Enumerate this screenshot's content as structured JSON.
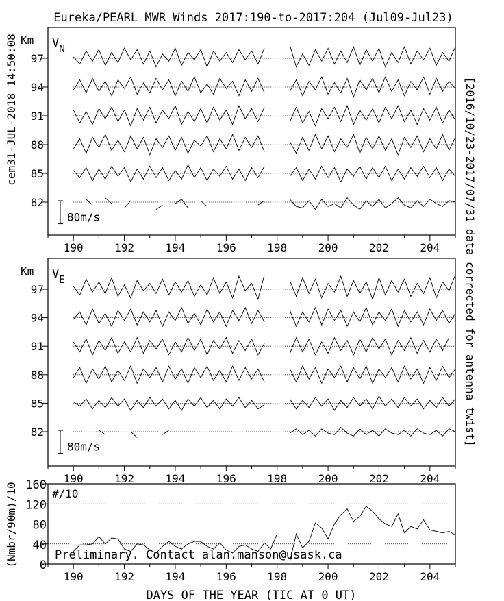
{
  "title": "Eureka/PEARL MWR Winds 2017:190-to-2017:204 (Jul09-Jul23)",
  "left_stamp": "cem31-JUL-2018 14:50:08",
  "right_note": "[2016/10/23-2017/07/31 data corrected for antenna twist]",
  "xlabel": "DAYS OF THE YEAR (TIC AT 0 UT)",
  "footer_note": "Preliminary. Contact alan.manson@usask.ca",
  "colors": {
    "line": "#000000",
    "background": "#ffffff"
  },
  "chart_data": [
    {
      "type": "line",
      "name": "VN",
      "label_main": "V",
      "label_sub": "N",
      "ylabel": "Km",
      "scale_label": "80m/s",
      "scale_value": 80,
      "xlim": [
        189,
        205
      ],
      "xticks": [
        190,
        192,
        194,
        196,
        198,
        200,
        202,
        204
      ],
      "xtick_labels": [
        "190",
        "192",
        "194",
        "196",
        "198",
        "200",
        "202",
        "204"
      ],
      "x_start": 190,
      "x_step": 0.25,
      "altitudes": [
        97,
        94,
        91,
        88,
        85,
        82
      ],
      "altitude_labels": [
        "97",
        "94",
        "91",
        "88",
        "85",
        "82"
      ],
      "series": [
        {
          "name": "97 km",
          "values": [
            5,
            -20,
            25,
            -10,
            30,
            -25,
            20,
            -15,
            35,
            -5,
            30,
            -20,
            25,
            -30,
            15,
            -10,
            35,
            -25,
            20,
            -5,
            30,
            -30,
            25,
            -10,
            20,
            -15,
            30,
            -5,
            25,
            -20,
            35,
            null,
            null,
            null,
            45,
            -30,
            15,
            -25,
            30,
            -10,
            35,
            -20,
            25,
            -15,
            40,
            -25,
            30,
            -10,
            35,
            -30,
            20,
            -15,
            40,
            -20,
            25,
            -5,
            35,
            -25,
            20,
            -10,
            40
          ]
        },
        {
          "name": "94 km",
          "values": [
            -10,
            25,
            -20,
            30,
            -15,
            20,
            -30,
            25,
            -5,
            35,
            -25,
            15,
            -20,
            30,
            -10,
            25,
            -30,
            20,
            -15,
            35,
            -20,
            10,
            -25,
            30,
            -5,
            20,
            -30,
            25,
            -15,
            30,
            -20,
            null,
            null,
            null,
            -15,
            25,
            -30,
            20,
            -10,
            35,
            -25,
            15,
            -20,
            30,
            -35,
            25,
            -10,
            30,
            -20,
            35,
            -15,
            25,
            -30,
            20,
            -10,
            35,
            -25,
            30,
            -15,
            20,
            -5
          ]
        },
        {
          "name": "91 km",
          "values": [
            20,
            -25,
            15,
            -30,
            25,
            -10,
            30,
            -20,
            20,
            -35,
            25,
            -15,
            30,
            -25,
            20,
            -10,
            35,
            -30,
            15,
            -20,
            25,
            -25,
            30,
            -15,
            20,
            -30,
            35,
            -10,
            25,
            -20,
            30,
            null,
            null,
            null,
            -20,
            30,
            -25,
            15,
            -35,
            25,
            -10,
            30,
            -20,
            35,
            -30,
            20,
            -15,
            25,
            -25,
            30,
            -10,
            35,
            -20,
            20,
            -30,
            25,
            -15,
            30,
            -25,
            20,
            -15
          ]
        },
        {
          "name": "88 km",
          "values": [
            -15,
            20,
            -30,
            25,
            -10,
            35,
            -20,
            15,
            -25,
            30,
            -15,
            25,
            -35,
            20,
            -10,
            30,
            -20,
            25,
            -30,
            15,
            -5,
            30,
            -25,
            20,
            -15,
            35,
            -20,
            25,
            -10,
            30,
            -25,
            null,
            null,
            null,
            10,
            -30,
            25,
            -20,
            35,
            -15,
            30,
            -25,
            20,
            -10,
            35,
            -30,
            25,
            -15,
            30,
            -20,
            20,
            -35,
            25,
            -10,
            30,
            -25,
            20,
            -15,
            35,
            -20,
            25
          ]
        },
        {
          "name": "85 km",
          "values": [
            10,
            -15,
            20,
            -25,
            15,
            -20,
            25,
            -10,
            20,
            -30,
            15,
            -20,
            25,
            -15,
            20,
            -25,
            10,
            -20,
            30,
            -15,
            20,
            -25,
            15,
            -10,
            25,
            -20,
            15,
            -25,
            20,
            -15,
            25,
            null,
            null,
            null,
            -10,
            20,
            -25,
            15,
            -20,
            25,
            -15,
            20,
            -30,
            15,
            -10,
            25,
            -20,
            20,
            -15,
            25,
            -25,
            15,
            -20,
            20,
            -10,
            25,
            -15,
            20,
            -25,
            15,
            -10
          ]
        },
        {
          "name": "82 km",
          "values": [
            5,
            null,
            10,
            -10,
            null,
            15,
            -5,
            null,
            -20,
            5,
            null,
            -15,
            null,
            -25,
            -10,
            null,
            -5,
            10,
            -20,
            null,
            5,
            -15,
            null,
            10,
            null,
            -5,
            null,
            5,
            null,
            -10,
            5,
            null,
            null,
            null,
            10,
            -15,
            -20,
            5,
            -25,
            10,
            -15,
            -5,
            -20,
            15,
            -10,
            -25,
            5,
            -15,
            10,
            -20,
            -5,
            15,
            -10,
            -20,
            5,
            -15,
            10,
            -5,
            -15,
            5,
            0
          ]
        }
      ]
    },
    {
      "type": "line",
      "name": "VE",
      "label_main": "V",
      "label_sub": "E",
      "ylabel": "Km",
      "scale_label": "80m/s",
      "scale_value": 80,
      "xlim": [
        189,
        205
      ],
      "xticks": [
        190,
        192,
        194,
        196,
        198,
        200,
        202,
        204
      ],
      "xtick_labels": [
        "190",
        "192",
        "194",
        "196",
        "198",
        "200",
        "202",
        "204"
      ],
      "x_start": 190,
      "x_step": 0.25,
      "altitudes": [
        97,
        94,
        91,
        88,
        85,
        82
      ],
      "altitude_labels": [
        "97",
        "94",
        "91",
        "88",
        "85",
        "82"
      ],
      "series": [
        {
          "name": "97 km",
          "values": [
            10,
            -20,
            35,
            -10,
            25,
            -15,
            40,
            -25,
            15,
            -30,
            30,
            -5,
            20,
            -15,
            35,
            -20,
            25,
            -10,
            30,
            -25,
            15,
            -20,
            40,
            -15,
            25,
            -30,
            45,
            -5,
            20,
            -35,
            50,
            null,
            null,
            null,
            30,
            -25,
            40,
            -15,
            35,
            -30,
            20,
            -10,
            45,
            -25,
            30,
            -15,
            25,
            -35,
            40,
            -20,
            30,
            -10,
            35,
            -25,
            20,
            -15,
            40,
            -30,
            25,
            -5,
            50
          ]
        },
        {
          "name": "94 km",
          "values": [
            -5,
            20,
            -25,
            30,
            -20,
            15,
            -30,
            25,
            -10,
            30,
            -25,
            20,
            -15,
            25,
            -30,
            20,
            -10,
            35,
            -20,
            15,
            -25,
            30,
            -15,
            20,
            -30,
            25,
            -10,
            35,
            -20,
            25,
            -15,
            null,
            null,
            null,
            25,
            -30,
            20,
            -15,
            35,
            -25,
            30,
            -10,
            25,
            -30,
            20,
            -15,
            35,
            -25,
            20,
            -10,
            30,
            -30,
            25,
            -15,
            20,
            -25,
            30,
            -10,
            25,
            -20,
            15
          ]
        },
        {
          "name": "91 km",
          "values": [
            15,
            -20,
            25,
            -30,
            20,
            -15,
            30,
            -25,
            15,
            -20,
            30,
            -25,
            20,
            -10,
            25,
            -30,
            15,
            -20,
            30,
            -15,
            25,
            -30,
            20,
            -10,
            30,
            -25,
            20,
            -15,
            25,
            -30,
            10,
            null,
            null,
            null,
            -25,
            30,
            -20,
            25,
            -30,
            15,
            -25,
            30,
            -15,
            20,
            -30,
            25,
            -20,
            30,
            -10,
            25,
            -30,
            20,
            -15,
            30,
            -25,
            20,
            -20,
            25,
            -15,
            30
          ]
        },
        {
          "name": "88 km",
          "values": [
            -10,
            25,
            -30,
            20,
            -15,
            30,
            -25,
            15,
            -20,
            30,
            -30,
            20,
            -10,
            25,
            -25,
            30,
            -15,
            20,
            -30,
            25,
            -10,
            30,
            -20,
            15,
            -25,
            30,
            -20,
            25,
            -15,
            20,
            -25,
            null,
            null,
            null,
            20,
            -25,
            30,
            -15,
            25,
            -30,
            20,
            -10,
            30,
            -25,
            25,
            -15,
            30,
            -30,
            20,
            -10,
            25,
            -25,
            30,
            -15,
            20,
            -30,
            25,
            -20,
            30,
            -10,
            20
          ]
        },
        {
          "name": "85 km",
          "values": [
            5,
            -10,
            15,
            -20,
            10,
            -15,
            20,
            -10,
            15,
            -25,
            10,
            -15,
            20,
            -10,
            15,
            -20,
            10,
            -25,
            15,
            -10,
            20,
            -15,
            10,
            -20,
            15,
            -10,
            20,
            -15,
            10,
            -20,
            -5,
            null,
            null,
            null,
            15,
            -20,
            10,
            -15,
            20,
            -10,
            15,
            -25,
            10,
            -15,
            20,
            -10,
            15,
            -20,
            25,
            -10,
            15,
            -15,
            20,
            -10,
            15,
            -20,
            10,
            -15,
            20,
            -10,
            15
          ]
        },
        {
          "name": "82 km",
          "values": [
            10,
            null,
            -5,
            null,
            5,
            -10,
            null,
            -15,
            null,
            0,
            -20,
            null,
            -5,
            null,
            -10,
            5,
            null,
            -15,
            null,
            -5,
            null,
            -20,
            null,
            0,
            null,
            -15,
            null,
            -5,
            null,
            -10,
            null,
            null,
            null,
            null,
            -5,
            10,
            -10,
            5,
            -15,
            10,
            -5,
            -10,
            15,
            -5,
            -15,
            10,
            -10,
            5,
            -15,
            10,
            -5,
            -10,
            5,
            -15,
            10,
            -5,
            -10,
            5,
            -15,
            10,
            0
          ]
        }
      ]
    },
    {
      "type": "line",
      "name": "count",
      "label": "#/10",
      "ylabel": "(Nmbr/90m)/10",
      "xlim": [
        189,
        205
      ],
      "ylim": [
        0,
        160
      ],
      "yticks": [
        0,
        40,
        80,
        120,
        160
      ],
      "ytick_labels": [
        "0",
        "40",
        "80",
        "120",
        "160"
      ],
      "grid_y": [
        40,
        80,
        120
      ],
      "xticks": [
        190,
        192,
        194,
        196,
        198,
        200,
        202,
        204
      ],
      "xtick_labels": [
        "190",
        "192",
        "194",
        "196",
        "198",
        "200",
        "202",
        "204"
      ],
      "x_start": 190,
      "x_step": 0.25,
      "values": [
        25,
        38,
        38,
        40,
        55,
        40,
        52,
        50,
        30,
        25,
        40,
        38,
        28,
        22,
        35,
        45,
        35,
        30,
        40,
        45,
        45,
        35,
        30,
        42,
        28,
        22,
        35,
        38,
        30,
        25,
        42,
        30,
        60,
        null,
        5,
        60,
        32,
        45,
        82,
        72,
        50,
        80,
        98,
        110,
        85,
        95,
        115,
        105,
        90,
        80,
        75,
        100,
        62,
        75,
        70,
        88,
        68,
        65,
        62,
        65,
        58
      ]
    }
  ]
}
